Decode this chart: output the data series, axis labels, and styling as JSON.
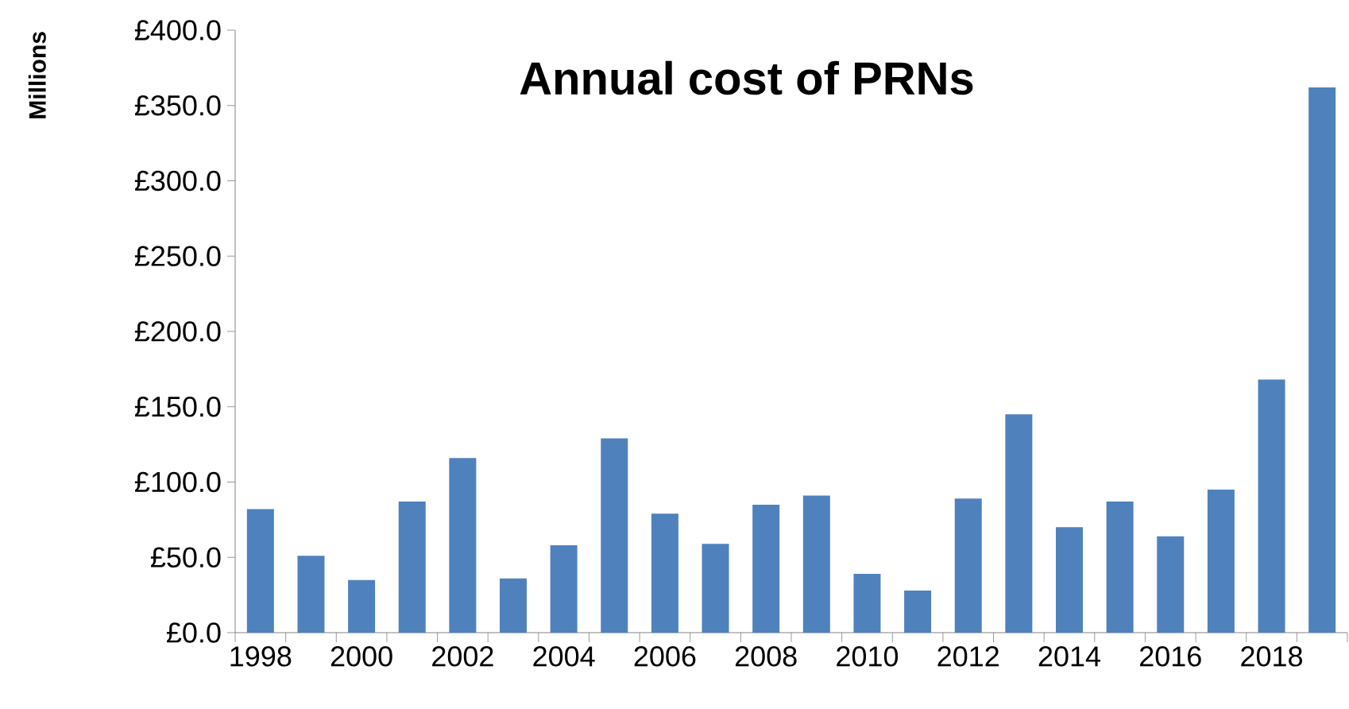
{
  "chart_data": {
    "type": "bar",
    "title": "Annual cost of PRNs",
    "ylabel": "Millions",
    "categories": [
      "1998",
      null,
      "2000",
      null,
      "2002",
      null,
      "2004",
      null,
      "2006",
      null,
      "2008",
      null,
      "2010",
      null,
      "2012",
      null,
      "2014",
      null,
      "2016",
      null,
      "2018",
      null
    ],
    "values": [
      82,
      51,
      35,
      87,
      116,
      36,
      58,
      129,
      79,
      59,
      85,
      91,
      39,
      28,
      89,
      145,
      70,
      87,
      64,
      95,
      168,
      362
    ],
    "color": "#4f81bd",
    "ylim": [
      0,
      400
    ],
    "yticks": [
      {
        "value": 0,
        "label": "£0.0"
      },
      {
        "value": 50,
        "label": "£50.0"
      },
      {
        "value": 100,
        "label": "£100.0"
      },
      {
        "value": 150,
        "label": "£150.0"
      },
      {
        "value": 200,
        "label": "£200.0"
      },
      {
        "value": 250,
        "label": "£250.0"
      },
      {
        "value": 300,
        "label": "£300.0"
      },
      {
        "value": 350,
        "label": "£350.0"
      },
      {
        "value": 400,
        "label": "£400.0"
      }
    ],
    "grid": false
  }
}
